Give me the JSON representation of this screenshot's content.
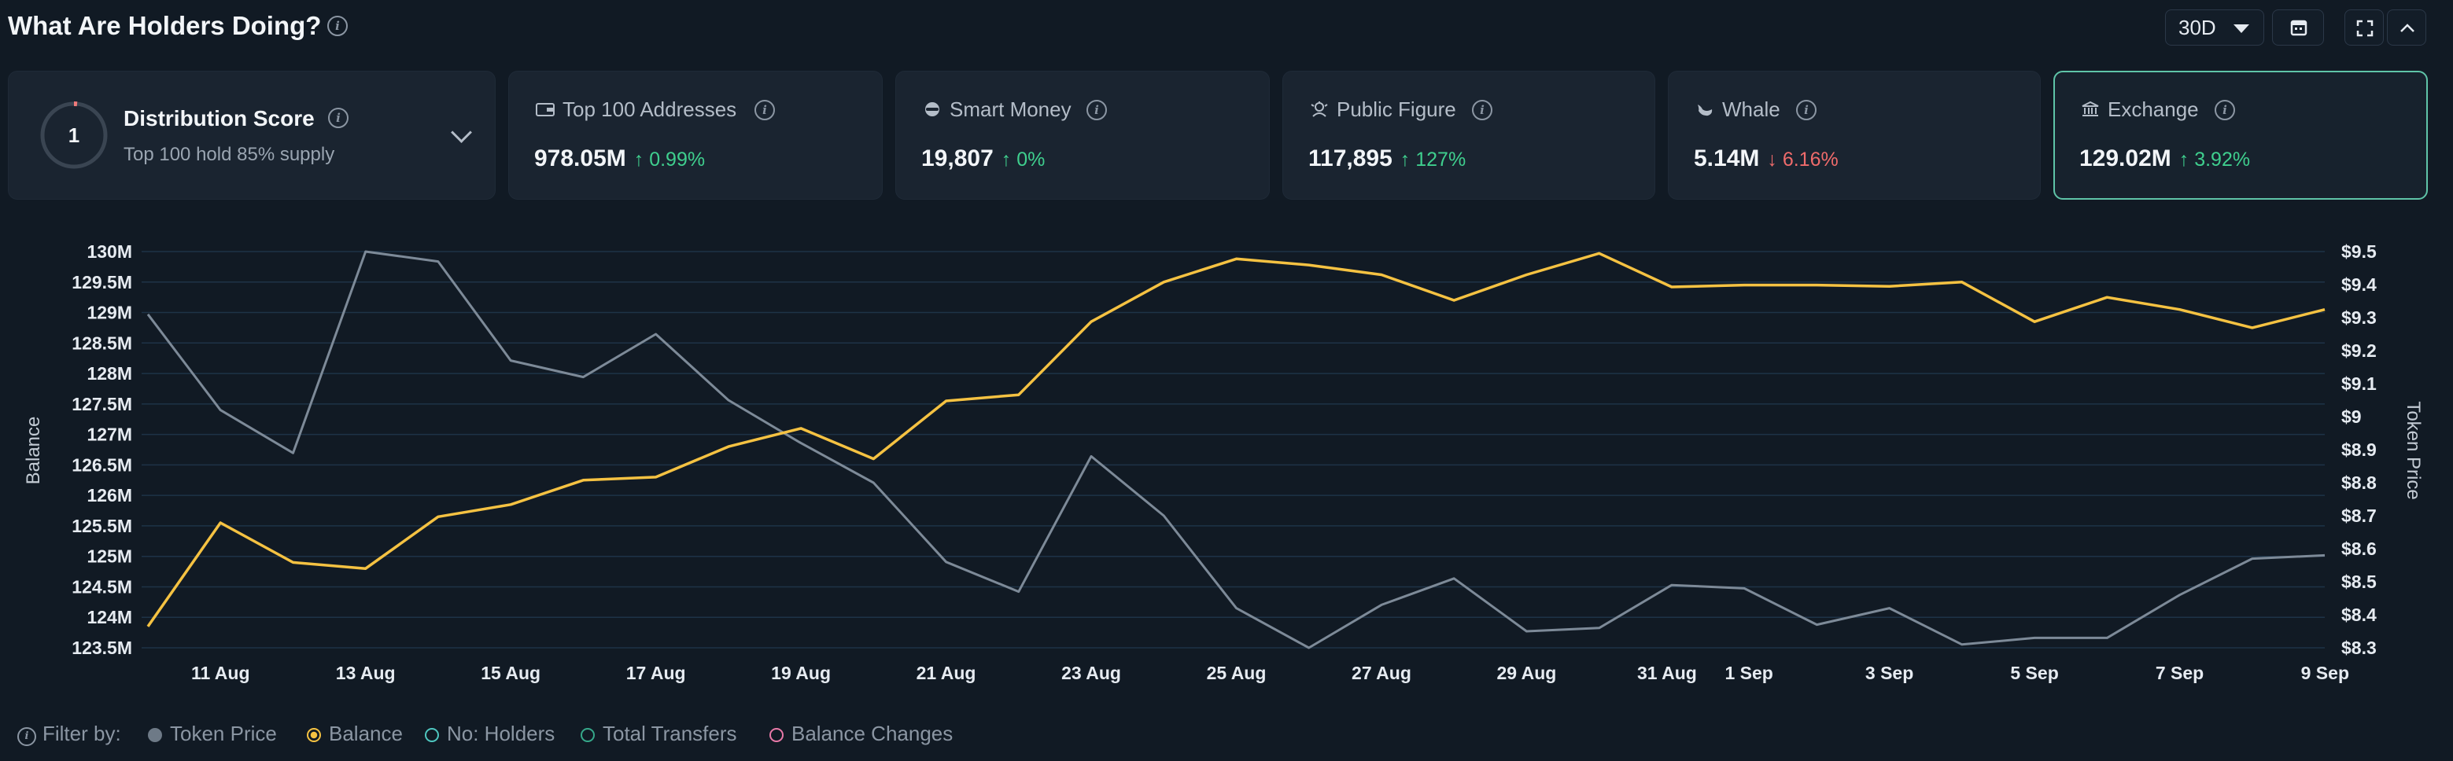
{
  "header": {
    "title": "What Are Holders Doing?",
    "range_label": "30D"
  },
  "distribution": {
    "score": "1",
    "title": "Distribution Score",
    "subtitle": "Top 100 hold 85% supply"
  },
  "cards": [
    {
      "label": "Top 100 Addresses",
      "value": "978.05M",
      "change": "↑ 0.99%",
      "direction": "up",
      "icon": "wallet-icon"
    },
    {
      "label": "Smart Money",
      "value": "19,807",
      "change": "↑ 0%",
      "direction": "up",
      "icon": "smart-money-icon"
    },
    {
      "label": "Public Figure",
      "value": "117,895",
      "change": "↑ 127%",
      "direction": "up",
      "icon": "public-figure-icon"
    },
    {
      "label": "Whale",
      "value": "5.14M",
      "change": "↓ 6.16%",
      "direction": "down",
      "icon": "whale-icon"
    },
    {
      "label": "Exchange",
      "value": "129.02M",
      "change": "↑ 3.92%",
      "direction": "up",
      "icon": "bank-icon"
    }
  ],
  "colors": {
    "balance": "#f5c242",
    "token_price": "#7d8a98",
    "grid": "#1e3347",
    "active_border": "#5fc4a8"
  },
  "filter": {
    "label": "Filter by:",
    "items": [
      {
        "label": "Token Price",
        "style": "filled-gray"
      },
      {
        "label": "Balance",
        "style": "ring-yellow"
      },
      {
        "label": "No: Holders",
        "style": "ring-teal"
      },
      {
        "label": "Total Transfers",
        "style": "ring-green"
      },
      {
        "label": "Balance Changes",
        "style": "ring-pink"
      }
    ]
  },
  "chart_data": {
    "type": "line",
    "ylabel": "Balance",
    "y2label": "Token Price",
    "ylim": [
      123.5,
      130
    ],
    "y2lim": [
      8.3,
      9.5
    ],
    "yticks": [
      "123.5M",
      "124M",
      "124.5M",
      "125M",
      "125.5M",
      "126M",
      "126.5M",
      "127M",
      "127.5M",
      "128M",
      "128.5M",
      "129M",
      "129.5M",
      "130M"
    ],
    "y2ticks": [
      "$8.3",
      "$8.4",
      "$8.5",
      "$8.6",
      "$8.7",
      "$8.8",
      "$8.9",
      "$9",
      "$9.1",
      "$9.2",
      "$9.3",
      "$9.4",
      "$9.5"
    ],
    "xticks": [
      "11 Aug",
      "13 Aug",
      "15 Aug",
      "17 Aug",
      "19 Aug",
      "21 Aug",
      "23 Aug",
      "25 Aug",
      "27 Aug",
      "29 Aug",
      "31 Aug",
      "1 Sep",
      "3 Sep",
      "5 Sep",
      "7 Sep",
      "9 Sep"
    ],
    "x": [
      "10 Aug",
      "11 Aug",
      "12 Aug",
      "13 Aug",
      "14 Aug",
      "15 Aug",
      "16 Aug",
      "17 Aug",
      "18 Aug",
      "19 Aug",
      "20 Aug",
      "21 Aug",
      "22 Aug",
      "23 Aug",
      "24 Aug",
      "25 Aug",
      "26 Aug",
      "27 Aug",
      "28 Aug",
      "29 Aug",
      "30 Aug",
      "31 Aug",
      "1 Sep",
      "2 Sep",
      "3 Sep",
      "4 Sep",
      "5 Sep",
      "6 Sep",
      "7 Sep",
      "8 Sep",
      "9 Sep"
    ],
    "series": [
      {
        "name": "Balance",
        "axis": "left",
        "values": [
          123.85,
          125.55,
          124.9,
          124.8,
          125.65,
          125.85,
          126.25,
          126.3,
          126.8,
          127.1,
          126.6,
          127.55,
          127.65,
          128.85,
          129.5,
          129.88,
          129.78,
          129.62,
          129.2,
          129.62,
          129.97,
          129.42,
          129.45,
          129.45,
          129.43,
          129.5,
          128.85,
          129.25,
          129.05,
          128.75,
          129.05
        ]
      },
      {
        "name": "Token Price",
        "axis": "right",
        "values": [
          9.31,
          9.02,
          8.89,
          9.5,
          9.47,
          9.17,
          9.12,
          9.25,
          9.05,
          8.92,
          8.8,
          8.56,
          8.47,
          8.88,
          8.7,
          8.42,
          8.3,
          8.43,
          8.51,
          8.35,
          8.36,
          8.49,
          8.48,
          8.37,
          8.42,
          8.31,
          8.33,
          8.33,
          8.46,
          8.57,
          8.58
        ]
      }
    ]
  }
}
